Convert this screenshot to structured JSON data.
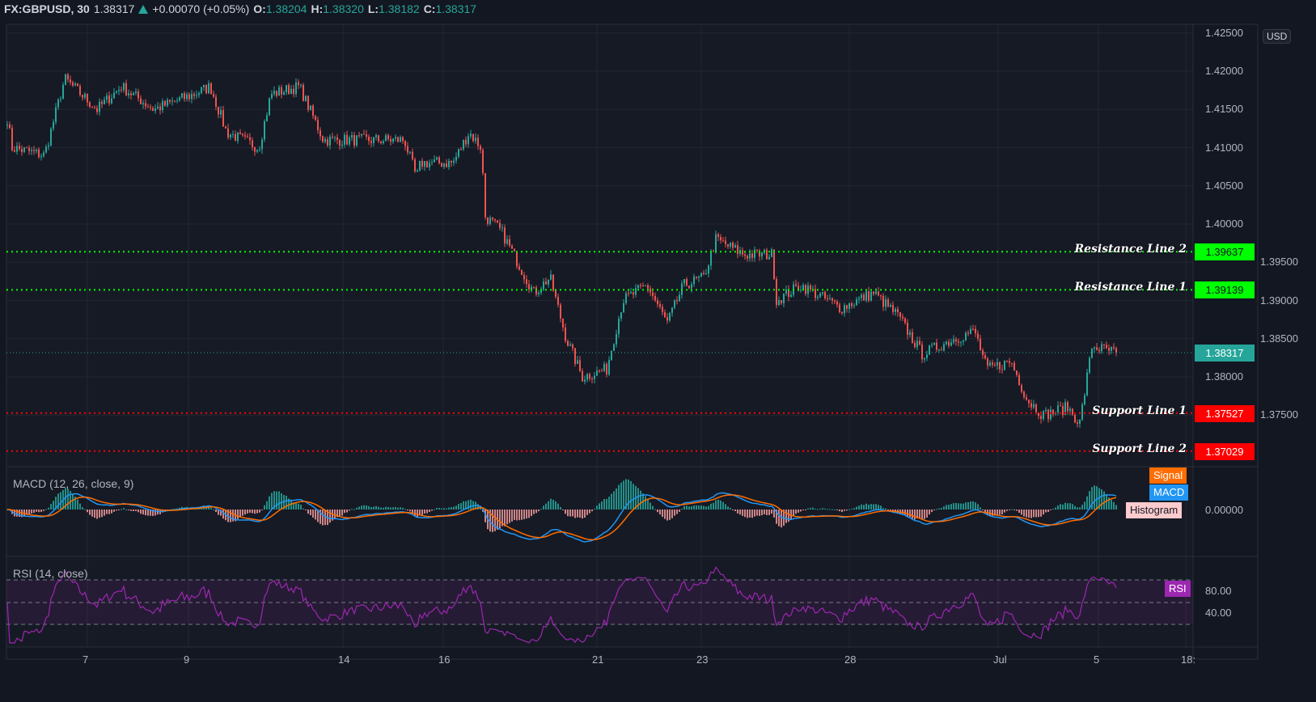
{
  "header": {
    "symbol": "FX:GBPUSD, 30",
    "last": "1.38317",
    "change": "+0.00070 (+0.05%)",
    "o_label": "O:",
    "o": "1.38204",
    "h_label": "H:",
    "h": "1.38320",
    "l_label": "L:",
    "l": "1.38182",
    "c_label": "C:",
    "c": "1.38317"
  },
  "currency": "USD",
  "price_axis": [
    "1.42500",
    "1.42000",
    "1.41500",
    "1.41000",
    "1.40500",
    "1.40000",
    "1.39500",
    "1.39000",
    "1.38500",
    "1.38000",
    "1.37500"
  ],
  "time_axis": [
    "7",
    "9",
    "14",
    "16",
    "21",
    "23",
    "28",
    "Jul",
    "5",
    "18:"
  ],
  "lines": [
    {
      "name": "Resistance Line 2",
      "price": "1.39637",
      "value": 1.39637,
      "color": "#00ff00",
      "text_color": "#131722"
    },
    {
      "name": "Resistance Line 1",
      "price": "1.39139",
      "value": 1.39139,
      "color": "#00ff00",
      "text_color": "#131722"
    },
    {
      "name": "Support Line 1",
      "price": "1.37527",
      "value": 1.37527,
      "color": "#ff0000",
      "text_color": "#ffffff"
    },
    {
      "name": "Support Line 2",
      "price": "1.37029",
      "value": 1.37029,
      "color": "#ff0000",
      "text_color": "#ffffff"
    }
  ],
  "last_price_tag": "1.38317",
  "macd": {
    "label": "MACD (12, 26, close, 9)",
    "legend": [
      "Signal",
      "MACD",
      "Histogram"
    ],
    "axis": "0.00000"
  },
  "rsi": {
    "label": "RSI (14, close)",
    "legend": "RSI",
    "axis": [
      "80.00",
      "40.00"
    ]
  },
  "colors": {
    "up": "#26a69a",
    "down": "#ef5350",
    "macd": "#2196f3",
    "signal": "#ff6d00",
    "rsi": "#9c27b0"
  },
  "chart_data": {
    "type": "candlestick",
    "title": "FX:GBPUSD, 30",
    "ylim": [
      1.368,
      1.426
    ],
    "close_path_waypoints": [
      [
        0,
        1.4195
      ],
      [
        15,
        1.41
      ],
      [
        55,
        1.409
      ],
      [
        80,
        1.419
      ],
      [
        120,
        1.415
      ],
      [
        150,
        1.418
      ],
      [
        190,
        1.415
      ],
      [
        240,
        1.417
      ],
      [
        260,
        1.418
      ],
      [
        280,
        1.412
      ],
      [
        320,
        1.41
      ],
      [
        335,
        1.417
      ],
      [
        370,
        1.418
      ],
      [
        400,
        1.411
      ],
      [
        440,
        1.411
      ],
      [
        500,
        1.411
      ],
      [
        515,
        1.406
      ],
      [
        520,
        1.408
      ],
      [
        560,
        1.408
      ],
      [
        580,
        1.412
      ],
      [
        595,
        1.41
      ],
      [
        600,
        1.401
      ],
      [
        620,
        1.399
      ],
      [
        640,
        1.395
      ],
      [
        660,
        1.391
      ],
      [
        680,
        1.393
      ],
      [
        700,
        1.385
      ],
      [
        720,
        1.38
      ],
      [
        750,
        1.381
      ],
      [
        770,
        1.39
      ],
      [
        800,
        1.392
      ],
      [
        825,
        1.387
      ],
      [
        845,
        1.392
      ],
      [
        870,
        1.393
      ],
      [
        885,
        1.398
      ],
      [
        920,
        1.396
      ],
      [
        955,
        1.396
      ],
      [
        960,
        1.39
      ],
      [
        990,
        1.392
      ],
      [
        1040,
        1.389
      ],
      [
        1080,
        1.391
      ],
      [
        1110,
        1.388
      ],
      [
        1140,
        1.383
      ],
      [
        1180,
        1.385
      ],
      [
        1205,
        1.386
      ],
      [
        1220,
        1.381
      ],
      [
        1250,
        1.382
      ],
      [
        1270,
        1.377
      ],
      [
        1290,
        1.375
      ],
      [
        1320,
        1.376
      ],
      [
        1335,
        1.374
      ],
      [
        1350,
        1.384
      ],
      [
        1380,
        1.38317
      ]
    ],
    "last": 1.38317
  }
}
